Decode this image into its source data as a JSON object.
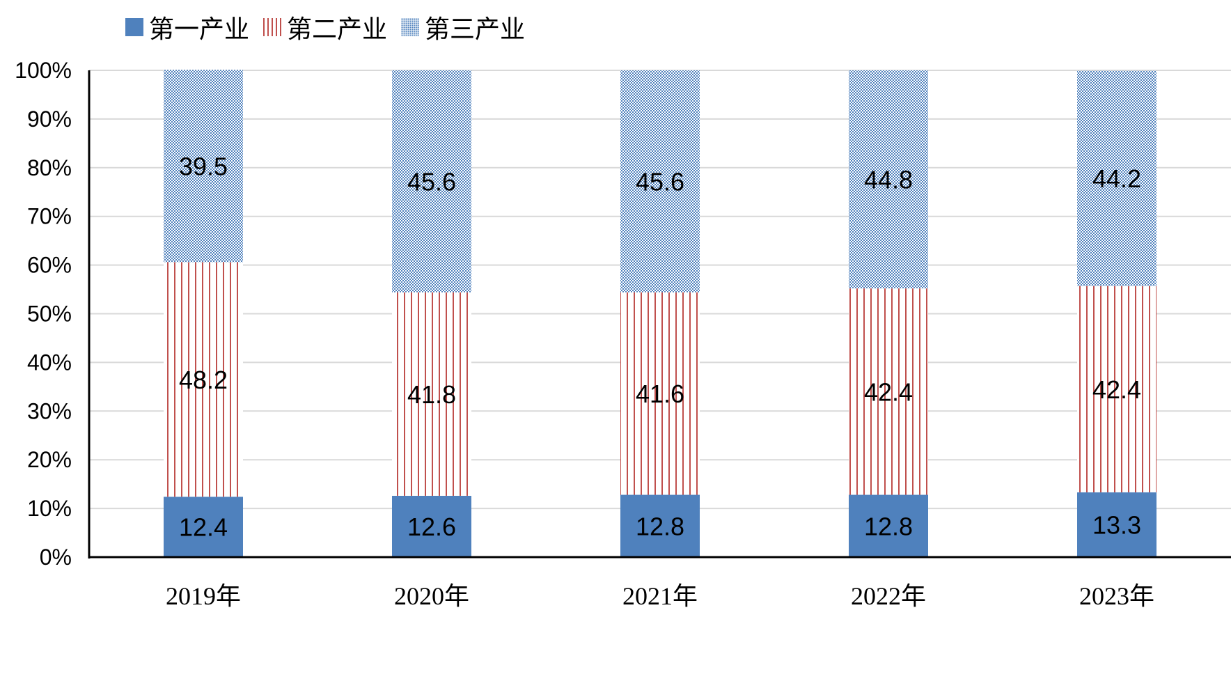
{
  "chart_data": {
    "type": "bar",
    "stacked": true,
    "percent_stacked": true,
    "categories": [
      "2019年",
      "2020年",
      "2021年",
      "2022年",
      "2023年"
    ],
    "series": [
      {
        "name": "第一产业",
        "values": [
          12.4,
          12.6,
          12.8,
          12.8,
          13.3
        ],
        "labels": [
          "12.4",
          "12.6",
          "12.8",
          "12.8",
          "13.3"
        ],
        "pattern": "solid",
        "color": "#4f81bd"
      },
      {
        "name": "第二产业",
        "values": [
          48.2,
          41.8,
          41.6,
          42.4,
          42.4
        ],
        "labels": [
          "48.2",
          "41.8",
          "41.6",
          "42.4",
          "42.4"
        ],
        "pattern": "vertical-lines",
        "color": "#c0504d"
      },
      {
        "name": "第三产业",
        "values": [
          39.5,
          45.6,
          45.6,
          44.8,
          44.2
        ],
        "labels": [
          "39.5",
          "45.6",
          "45.6",
          "44.8",
          "44.2"
        ],
        "pattern": "dots",
        "color": "#4f81bd"
      }
    ],
    "y_ticks": [
      "0%",
      "10%",
      "20%",
      "30%",
      "40%",
      "50%",
      "60%",
      "70%",
      "80%",
      "90%",
      "100%"
    ],
    "ylim": [
      0,
      100
    ],
    "grid": true,
    "legend_position": "top-left"
  }
}
